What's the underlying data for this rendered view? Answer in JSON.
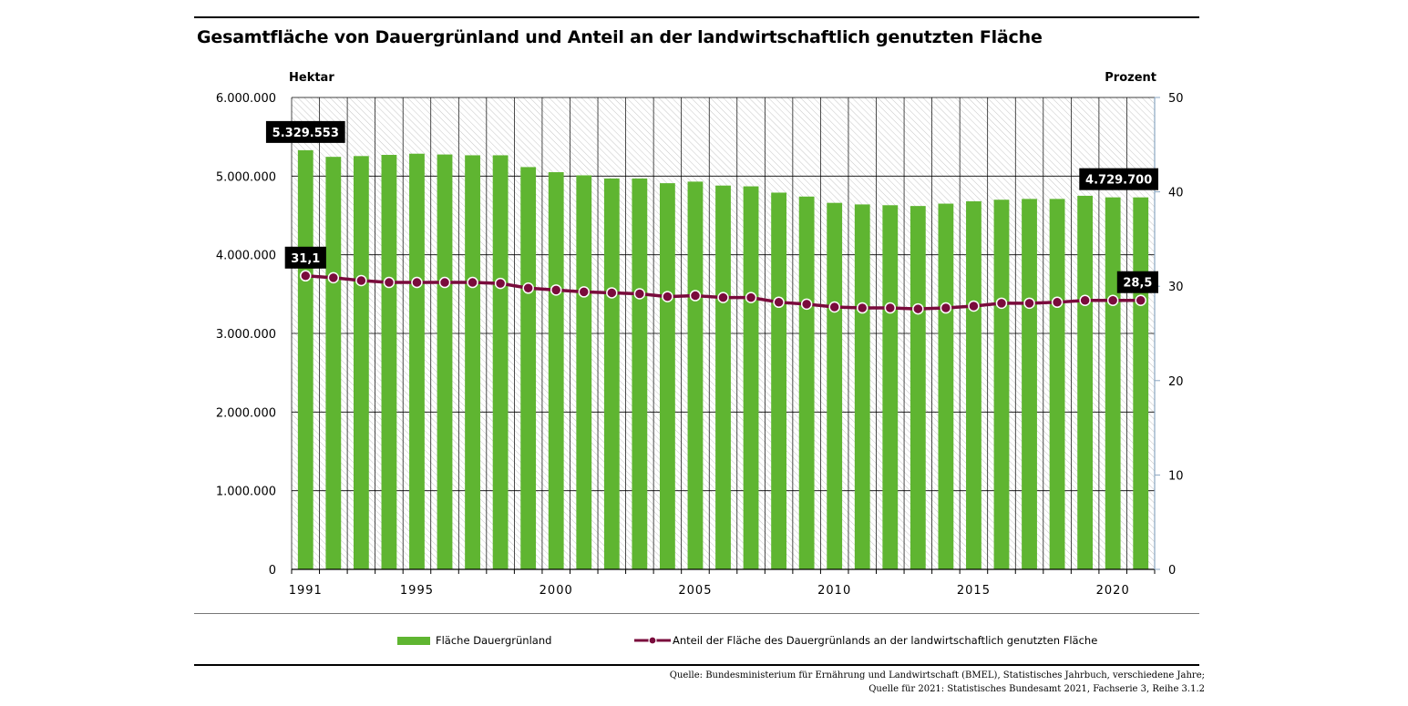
{
  "title": "Gesamtfläche von Dauergrünland und Anteil an der landwirtschaftlich genutzten Fläche",
  "left_unit": "Hektar",
  "right_unit": "Prozent",
  "colors": {
    "bar": "#5fb531",
    "line": "#7a0b3c",
    "grid": "#000000",
    "hatch": "#b8b8b8",
    "label_bg": "#000000"
  },
  "legend": {
    "bar": "Fläche Dauergrünland",
    "line": "Anteil der Fläche des Dauergrünlands an der landwirtschaftlich genutzten Fläche"
  },
  "source": {
    "line1": "Quelle: Bundesministerium für Ernährung und Landwirtschaft (BMEL), Statistisches Jahrbuch, verschiedene Jahre;",
    "line2": "Quelle für 2021: Statistisches Bundesamt 2021, Fachserie 3, Reihe 3.1.2"
  },
  "chart_data": {
    "type": "bar",
    "title": "Gesamtfläche von Dauergrünland und Anteil an der landwirtschaftlich genutzten Fläche",
    "x": [
      1991,
      1992,
      1993,
      1994,
      1995,
      1996,
      1997,
      1998,
      1999,
      2000,
      2001,
      2002,
      2003,
      2004,
      2005,
      2006,
      2007,
      2008,
      2009,
      2010,
      2011,
      2012,
      2013,
      2014,
      2015,
      2016,
      2017,
      2018,
      2019,
      2020,
      2021
    ],
    "x_tick_labels": [
      "1991",
      "1995",
      "2000",
      "2005",
      "2010",
      "2015",
      "2020"
    ],
    "y_left": {
      "label": "Hektar",
      "range": [
        0,
        6000000
      ],
      "ticks": [
        "0",
        "1.000.000",
        "2.000.000",
        "3.000.000",
        "4.000.000",
        "5.000.000",
        "6.000.000"
      ]
    },
    "y_right": {
      "label": "Prozent",
      "range": [
        0,
        50
      ],
      "ticks": [
        "0",
        "10",
        "20",
        "30",
        "40",
        "50"
      ]
    },
    "series": [
      {
        "name": "Fläche Dauergrünland",
        "type": "bar",
        "axis": "left",
        "values": [
          5329553,
          5245000,
          5255000,
          5270000,
          5285000,
          5275000,
          5265000,
          5265000,
          5115000,
          5050000,
          5010000,
          4970000,
          4970000,
          4910000,
          4930000,
          4880000,
          4870000,
          4790000,
          4740000,
          4660000,
          4640000,
          4630000,
          4620000,
          4650000,
          4680000,
          4700000,
          4710000,
          4710000,
          4750000,
          4730000,
          4729700
        ]
      },
      {
        "name": "Anteil der Fläche des Dauergrünlands an der landwirtschaftlich genutzten Fläche",
        "type": "line",
        "axis": "right",
        "values": [
          31.1,
          30.9,
          30.6,
          30.4,
          30.4,
          30.4,
          30.4,
          30.3,
          29.8,
          29.6,
          29.4,
          29.3,
          29.2,
          28.9,
          29.0,
          28.8,
          28.8,
          28.3,
          28.1,
          27.8,
          27.7,
          27.7,
          27.6,
          27.7,
          27.9,
          28.2,
          28.2,
          28.3,
          28.5,
          28.5,
          28.5
        ]
      }
    ],
    "annotations": [
      {
        "series": 0,
        "index": 0,
        "text": "5.329.553"
      },
      {
        "series": 0,
        "index": 30,
        "text": "4.729.700"
      },
      {
        "series": 1,
        "index": 0,
        "text": "31,1"
      },
      {
        "series": 1,
        "index": 30,
        "text": "28,5"
      }
    ],
    "grid": true,
    "legend_position": "bottom"
  }
}
